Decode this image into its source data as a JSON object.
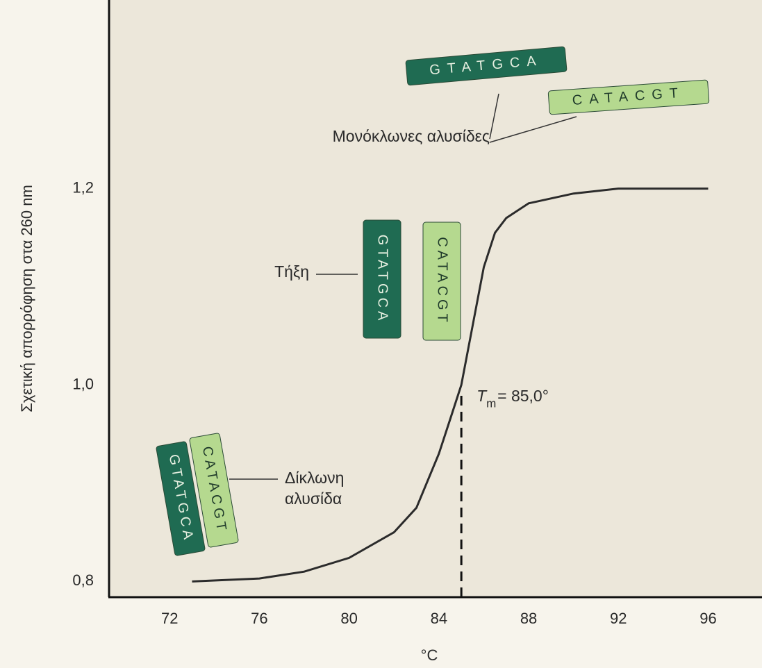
{
  "chart_data": {
    "type": "line",
    "y_label": "Σχετική απορρόφηση στα 260 nm",
    "x_label": "°C",
    "x": [
      73,
      76,
      78,
      80,
      82,
      83,
      84,
      84.5,
      85,
      85.5,
      86,
      86.5,
      87,
      88,
      90,
      92,
      96
    ],
    "values": [
      0.8,
      0.803,
      0.81,
      0.824,
      0.85,
      0.875,
      0.93,
      0.965,
      1.0,
      1.06,
      1.12,
      1.155,
      1.17,
      1.185,
      1.195,
      1.2,
      1.2
    ],
    "color": "#2b2b2b",
    "xlim": [
      69.3,
      98.4
    ],
    "ylim": [
      0.784,
      1.392
    ],
    "xticks": [
      72,
      76,
      80,
      84,
      88,
      92,
      96
    ],
    "yticks": [
      {
        "value": 0.8,
        "label": "0,8"
      },
      {
        "value": 1.0,
        "label": "1,0"
      },
      {
        "value": 1.2,
        "label": "1,2"
      }
    ],
    "grid": false,
    "tm_marker": {
      "x": 85,
      "symbol": "T",
      "subscript": "m",
      "label": "= 85,0°"
    },
    "annotations": [
      {
        "label": "Μονόκλωνες αλυσίδες"
      },
      {
        "label": "Τήξη"
      },
      {
        "lines": [
          "Δίκλωνη",
          "αλυσίδα"
        ]
      }
    ],
    "strands": [
      {
        "sequence": "GTATGCA",
        "color": "#1f6b52"
      },
      {
        "sequence": "CATACGT",
        "color": "#b5d98f"
      },
      {
        "sequence": "GTATGCA",
        "color": "#1f6b52"
      },
      {
        "sequence": "CATACGT",
        "color": "#b5d98f"
      },
      {
        "sequence": "GTATGCA",
        "color": "#1f6b52"
      },
      {
        "sequence": "CATACGT",
        "color": "#b5d98f"
      }
    ]
  }
}
